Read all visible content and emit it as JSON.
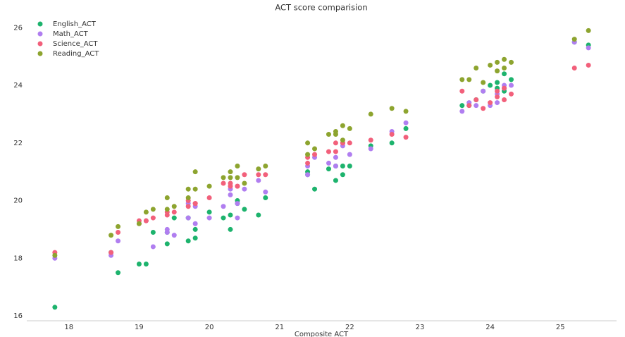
{
  "chart_data": {
    "type": "scatter",
    "title": "ACT score comparision",
    "x_label": "Composite ACT",
    "x": [
      17.8,
      18.6,
      18.7,
      19.0,
      19.1,
      19.2,
      19.4,
      19.4,
      19.5,
      19.7,
      19.7,
      19.8,
      19.8,
      20.0,
      20.2,
      20.3,
      20.3,
      20.4,
      20.4,
      20.5,
      20.7,
      20.8,
      21.4,
      21.4,
      21.5,
      21.7,
      21.8,
      21.8,
      21.9,
      21.9,
      22.0,
      22.3,
      22.6,
      22.8,
      23.6,
      23.7,
      23.8,
      23.9,
      24.0,
      24.1,
      24.1,
      24.2,
      24.2,
      24.3,
      25.2,
      25.4
    ],
    "series": [
      {
        "name": "English_ACT",
        "color": "#1db36d",
        "values": [
          16.3,
          18.2,
          17.5,
          17.8,
          17.8,
          18.9,
          18.5,
          18.9,
          19.4,
          18.6,
          19.4,
          18.7,
          19.0,
          19.6,
          19.4,
          19.0,
          19.5,
          19.9,
          20.0,
          19.7,
          19.5,
          20.1,
          21.0,
          20.9,
          20.4,
          21.1,
          20.7,
          21.2,
          20.9,
          21.2,
          21.2,
          21.9,
          22.0,
          22.5,
          23.3,
          23.3,
          23.5,
          23.8,
          24.0,
          24.1,
          23.9,
          24.4,
          23.8,
          24.2,
          25.5,
          25.4
        ]
      },
      {
        "name": "Math_ACT",
        "color": "#b07ef0",
        "values": [
          18.0,
          18.1,
          18.6,
          19.2,
          19.3,
          18.4,
          19.0,
          18.9,
          18.8,
          19.4,
          19.9,
          19.2,
          19.8,
          19.4,
          19.8,
          20.4,
          20.2,
          19.4,
          19.9,
          20.4,
          20.7,
          20.3,
          20.9,
          21.2,
          21.5,
          21.3,
          21.5,
          21.2,
          21.9,
          22.0,
          21.6,
          21.8,
          22.4,
          22.7,
          23.1,
          23.4,
          23.3,
          23.8,
          23.3,
          23.4,
          23.7,
          24.0,
          23.9,
          24.0,
          25.5,
          25.3
        ]
      },
      {
        "name": "Science_ACT",
        "color": "#f2607b",
        "values": [
          18.2,
          18.2,
          18.9,
          19.3,
          19.3,
          19.4,
          19.5,
          19.6,
          19.6,
          19.8,
          20.0,
          19.9,
          19.9,
          20.1,
          20.6,
          20.6,
          20.5,
          20.5,
          20.5,
          20.9,
          20.9,
          20.9,
          21.3,
          21.5,
          21.6,
          21.7,
          21.7,
          22.0,
          22.0,
          22.0,
          22.0,
          22.1,
          22.3,
          22.2,
          23.8,
          23.3,
          23.5,
          23.2,
          23.4,
          23.8,
          23.6,
          23.5,
          23.9,
          23.7,
          24.6,
          24.7
        ]
      },
      {
        "name": "Reading_ACT",
        "color": "#8da42f",
        "values": [
          18.1,
          18.8,
          19.1,
          19.2,
          19.6,
          19.7,
          20.1,
          19.7,
          19.8,
          20.4,
          20.1,
          20.4,
          21.0,
          20.5,
          20.8,
          21.0,
          20.8,
          21.2,
          20.8,
          20.6,
          21.1,
          21.2,
          21.6,
          22.0,
          21.8,
          22.3,
          22.4,
          22.3,
          22.6,
          22.1,
          22.5,
          23.0,
          23.2,
          23.1,
          24.2,
          24.2,
          24.6,
          24.1,
          24.7,
          24.8,
          24.5,
          24.9,
          24.6,
          24.8,
          25.6,
          25.9
        ]
      }
    ],
    "xlim": [
      17.4,
      25.8
    ],
    "ylim": [
      15.83,
      26.35
    ],
    "xticks": [
      18,
      19,
      20,
      21,
      22,
      23,
      24,
      25
    ],
    "yticks": [
      16,
      18,
      20,
      22,
      24,
      26
    ],
    "legend": "upper left"
  }
}
